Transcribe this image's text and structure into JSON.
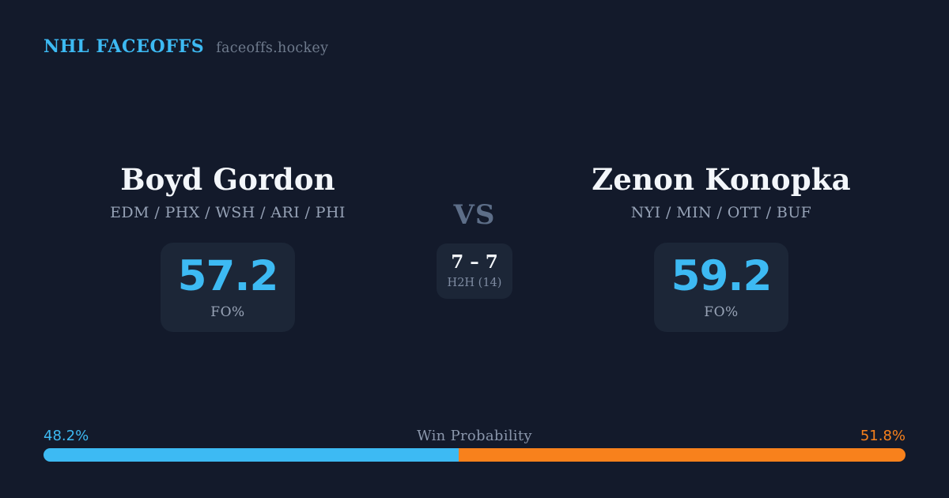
{
  "colors": {
    "background": "#131A2B",
    "card": "#1C2637",
    "accent_blue": "#3DBAF3",
    "accent_orange": "#F8811C",
    "text_primary": "#F3F6FA",
    "text_muted": "#96A2B6",
    "text_dim": "#5D6E88"
  },
  "header": {
    "brand": "NHL FACEOFFS",
    "site": "faceoffs.hockey"
  },
  "players": {
    "left": {
      "name": "Boyd Gordon",
      "teams": "EDM / PHX / WSH / ARI / PHI",
      "fo_value": "57.2",
      "fo_label": "FO%"
    },
    "right": {
      "name": "Zenon Konopka",
      "teams": "NYI / MIN / OTT / BUF",
      "fo_value": "59.2",
      "fo_label": "FO%"
    }
  },
  "center": {
    "vs_label": "VS",
    "h2h_score": "7 – 7",
    "h2h_label": "H2H (14)"
  },
  "win_probability": {
    "title": "Win Probability",
    "left_label": "48.2%",
    "right_label": "51.8%",
    "left_value": 48.2,
    "right_value": 51.8
  }
}
